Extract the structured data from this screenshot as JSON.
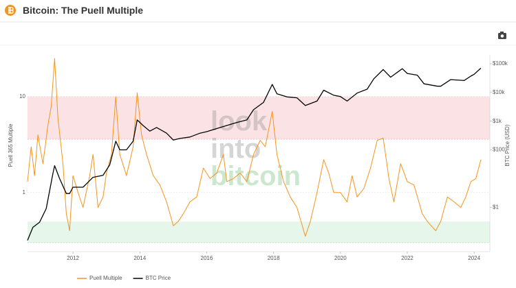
{
  "chart_data": {
    "type": "line",
    "title": "Bitcoin: The Puell Multiple",
    "watermark": [
      "look",
      "into",
      "bitcoin"
    ],
    "y_label": "Puell 365 Multiple",
    "y2_label": "BTC Price (USD)",
    "log_scale": true,
    "xlim": [
      2010.64,
      2024.47
    ],
    "xticks": [
      2012,
      2014,
      2016,
      2018,
      2020,
      2022,
      2024
    ],
    "ylim": [
      0.25,
      27.3
    ],
    "yticks": [
      1,
      10
    ],
    "y2lim": [
      0.0316,
      204000
    ],
    "y2ticks": [
      {
        "value": 1,
        "label": "$1"
      },
      {
        "value": 100,
        "label": "$100"
      },
      {
        "value": 1000,
        "label": "$1k"
      },
      {
        "value": 10000,
        "label": "$10k"
      },
      {
        "value": 100000,
        "label": "$100k"
      }
    ],
    "grid": true,
    "legend": "bottom",
    "bands": [
      {
        "from": 3.6,
        "to": 10,
        "color": "#fbe3e5"
      },
      {
        "from": 0.3,
        "to": 0.5,
        "color": "#e6f6ea"
      }
    ],
    "series": [
      {
        "name": "Puell Multiple",
        "color": "#f7931a",
        "x": [
          2010.64,
          2010.75,
          2010.85,
          2010.95,
          2011.1,
          2011.25,
          2011.35,
          2011.45,
          2011.55,
          2011.7,
          2011.8,
          2011.9,
          2012.0,
          2012.15,
          2012.3,
          2012.5,
          2012.6,
          2012.75,
          2012.9,
          2013.0,
          2013.15,
          2013.28,
          2013.4,
          2013.6,
          2013.8,
          2013.92,
          2014.05,
          2014.2,
          2014.4,
          2014.6,
          2014.8,
          2015.0,
          2015.15,
          2015.3,
          2015.5,
          2015.7,
          2015.9,
          2016.1,
          2016.3,
          2016.5,
          2016.6,
          2016.8,
          2017.0,
          2017.2,
          2017.4,
          2017.6,
          2017.75,
          2017.96,
          2018.1,
          2018.3,
          2018.5,
          2018.7,
          2018.95,
          2019.1,
          2019.3,
          2019.5,
          2019.65,
          2019.8,
          2020.0,
          2020.2,
          2020.35,
          2020.5,
          2020.7,
          2020.9,
          2021.1,
          2021.28,
          2021.45,
          2021.6,
          2021.8,
          2022.0,
          2022.2,
          2022.45,
          2022.6,
          2022.85,
          2023.0,
          2023.2,
          2023.4,
          2023.6,
          2023.75,
          2023.9,
          2024.05,
          2024.2
        ],
        "values": [
          1.3,
          3,
          1.5,
          4,
          2,
          5,
          8,
          25,
          6,
          2,
          0.6,
          0.4,
          1.5,
          1.0,
          0.7,
          1.5,
          2.5,
          0.7,
          0.9,
          1.6,
          2.5,
          10,
          2.5,
          1.5,
          3,
          11,
          4,
          2.5,
          1.5,
          1.2,
          0.8,
          0.45,
          0.5,
          0.6,
          0.8,
          0.9,
          1.8,
          1.4,
          1.6,
          2.5,
          1.3,
          1.4,
          1.6,
          1.3,
          2.5,
          3.5,
          3,
          7,
          2.5,
          1.3,
          0.9,
          0.7,
          0.35,
          0.5,
          1.0,
          2.2,
          1.6,
          1.0,
          1.0,
          0.8,
          1.5,
          0.9,
          1.1,
          1.8,
          3.5,
          3.7,
          1.4,
          0.8,
          2.0,
          1.3,
          1.2,
          0.6,
          0.5,
          0.4,
          0.5,
          0.9,
          0.8,
          0.7,
          0.9,
          1.3,
          1.4,
          2.2
        ]
      },
      {
        "name": "BTC Price",
        "color": "#000000",
        "axis": "y2",
        "x": [
          2010.64,
          2010.8,
          2011.0,
          2011.2,
          2011.4,
          2011.45,
          2011.6,
          2011.8,
          2011.9,
          2012.0,
          2012.3,
          2012.6,
          2012.9,
          2013.1,
          2013.28,
          2013.4,
          2013.6,
          2013.8,
          2013.92,
          2014.1,
          2014.3,
          2014.5,
          2014.8,
          2015.0,
          2015.2,
          2015.5,
          2015.8,
          2016.0,
          2016.5,
          2016.9,
          2017.2,
          2017.4,
          2017.7,
          2017.96,
          2018.1,
          2018.4,
          2018.7,
          2018.95,
          2019.3,
          2019.5,
          2019.8,
          2020.0,
          2020.2,
          2020.5,
          2020.8,
          2021.0,
          2021.28,
          2021.5,
          2021.85,
          2022.0,
          2022.3,
          2022.5,
          2022.9,
          2023.0,
          2023.3,
          2023.7,
          2023.9,
          2024.0,
          2024.2
        ],
        "values": [
          0.07,
          0.2,
          0.3,
          0.9,
          15,
          28,
          10,
          3,
          3,
          5,
          5,
          11,
          13,
          30,
          200,
          100,
          100,
          200,
          1100,
          700,
          450,
          600,
          380,
          220,
          250,
          280,
          380,
          430,
          650,
          900,
          1100,
          2500,
          4500,
          19000,
          9000,
          7000,
          6500,
          3500,
          5000,
          12000,
          8000,
          7200,
          5000,
          9500,
          13000,
          30000,
          63000,
          34000,
          67000,
          46000,
          40000,
          20000,
          16500,
          16500,
          28000,
          26000,
          37000,
          43000,
          70000
        ]
      }
    ]
  }
}
